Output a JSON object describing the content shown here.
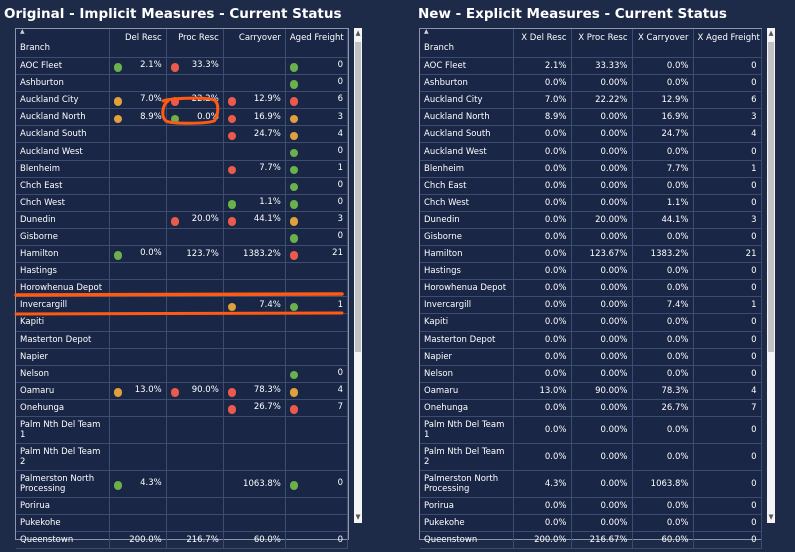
{
  "left": {
    "title": "Original - Implicit Measures - Current Status",
    "columns": [
      "Branch",
      "Del Resc",
      "Proc Resc",
      "Carryover",
      "Aged Freight"
    ],
    "rows": [
      {
        "branch": "AOC Fleet",
        "del": "2.1%",
        "del_ind": "green",
        "proc": "33.3%",
        "proc_ind": "red",
        "carry": "",
        "carry_ind": "",
        "aged": "0",
        "aged_ind": "green"
      },
      {
        "branch": "Ashburton",
        "del": "",
        "del_ind": "",
        "proc": "",
        "proc_ind": "",
        "carry": "",
        "carry_ind": "",
        "aged": "0",
        "aged_ind": "green"
      },
      {
        "branch": "Auckland City",
        "del": "7.0%",
        "del_ind": "orange",
        "proc": "22.2%",
        "proc_ind": "red",
        "carry": "12.9%",
        "carry_ind": "red",
        "aged": "6",
        "aged_ind": "red"
      },
      {
        "branch": "Auckland North",
        "del": "8.9%",
        "del_ind": "orange",
        "proc": "0.0%",
        "proc_ind": "green",
        "carry": "16.9%",
        "carry_ind": "red",
        "aged": "3",
        "aged_ind": "orange"
      },
      {
        "branch": "Auckland South",
        "del": "",
        "del_ind": "",
        "proc": "",
        "proc_ind": "",
        "carry": "24.7%",
        "carry_ind": "red",
        "aged": "4",
        "aged_ind": "orange"
      },
      {
        "branch": "Auckland West",
        "del": "",
        "del_ind": "",
        "proc": "",
        "proc_ind": "",
        "carry": "",
        "carry_ind": "",
        "aged": "0",
        "aged_ind": "green"
      },
      {
        "branch": "Blenheim",
        "del": "",
        "del_ind": "",
        "proc": "",
        "proc_ind": "",
        "carry": "7.7%",
        "carry_ind": "red",
        "aged": "1",
        "aged_ind": "green"
      },
      {
        "branch": "Chch East",
        "del": "",
        "del_ind": "",
        "proc": "",
        "proc_ind": "",
        "carry": "",
        "carry_ind": "",
        "aged": "0",
        "aged_ind": "green"
      },
      {
        "branch": "Chch West",
        "del": "",
        "del_ind": "",
        "proc": "",
        "proc_ind": "",
        "carry": "1.1%",
        "carry_ind": "green",
        "aged": "0",
        "aged_ind": "green"
      },
      {
        "branch": "Dunedin",
        "del": "",
        "del_ind": "",
        "proc": "20.0%",
        "proc_ind": "red",
        "carry": "44.1%",
        "carry_ind": "red",
        "aged": "3",
        "aged_ind": "orange"
      },
      {
        "branch": "Gisborne",
        "del": "",
        "del_ind": "",
        "proc": "",
        "proc_ind": "",
        "carry": "",
        "carry_ind": "",
        "aged": "0",
        "aged_ind": "green"
      },
      {
        "branch": "Hamilton",
        "del": "0.0%",
        "del_ind": "green",
        "proc": "123.7%",
        "proc_ind": "",
        "carry": "1383.2%",
        "carry_ind": "",
        "aged": "21",
        "aged_ind": "red"
      },
      {
        "branch": "Hastings",
        "del": "",
        "del_ind": "",
        "proc": "",
        "proc_ind": "",
        "carry": "",
        "carry_ind": "",
        "aged": "",
        "aged_ind": ""
      },
      {
        "branch": "Horowhenua Depot",
        "del": "",
        "del_ind": "",
        "proc": "",
        "proc_ind": "",
        "carry": "",
        "carry_ind": "",
        "aged": "",
        "aged_ind": ""
      },
      {
        "branch": "Invercargill",
        "del": "",
        "del_ind": "",
        "proc": "",
        "proc_ind": "",
        "carry": "7.4%",
        "carry_ind": "orange",
        "aged": "1",
        "aged_ind": "green"
      },
      {
        "branch": "Kapiti",
        "del": "",
        "del_ind": "",
        "proc": "",
        "proc_ind": "",
        "carry": "",
        "carry_ind": "",
        "aged": "",
        "aged_ind": ""
      },
      {
        "branch": "Masterton Depot",
        "del": "",
        "del_ind": "",
        "proc": "",
        "proc_ind": "",
        "carry": "",
        "carry_ind": "",
        "aged": "",
        "aged_ind": ""
      },
      {
        "branch": "Napier",
        "del": "",
        "del_ind": "",
        "proc": "",
        "proc_ind": "",
        "carry": "",
        "carry_ind": "",
        "aged": "",
        "aged_ind": ""
      },
      {
        "branch": "Nelson",
        "del": "",
        "del_ind": "",
        "proc": "",
        "proc_ind": "",
        "carry": "",
        "carry_ind": "",
        "aged": "0",
        "aged_ind": "green"
      },
      {
        "branch": "Oamaru",
        "del": "13.0%",
        "del_ind": "orange",
        "proc": "90.0%",
        "proc_ind": "red",
        "carry": "78.3%",
        "carry_ind": "red",
        "aged": "4",
        "aged_ind": "orange"
      },
      {
        "branch": "Onehunga",
        "del": "",
        "del_ind": "",
        "proc": "",
        "proc_ind": "",
        "carry": "26.7%",
        "carry_ind": "red",
        "aged": "7",
        "aged_ind": "red"
      },
      {
        "branch": "Palm Nth Del Team 1",
        "del": "",
        "del_ind": "",
        "proc": "",
        "proc_ind": "",
        "carry": "",
        "carry_ind": "",
        "aged": "",
        "aged_ind": "",
        "tall": true
      },
      {
        "branch": "Palm Nth Del Team 2",
        "del": "",
        "del_ind": "",
        "proc": "",
        "proc_ind": "",
        "carry": "",
        "carry_ind": "",
        "aged": "",
        "aged_ind": "",
        "tall": true
      },
      {
        "branch": "Palmerston North Processing",
        "del": "4.3%",
        "del_ind": "green",
        "proc": "",
        "proc_ind": "",
        "carry": "1063.8%",
        "carry_ind": "",
        "aged": "0",
        "aged_ind": "green",
        "tall": true
      },
      {
        "branch": "Porirua",
        "del": "",
        "del_ind": "",
        "proc": "",
        "proc_ind": "",
        "carry": "",
        "carry_ind": "",
        "aged": "",
        "aged_ind": ""
      },
      {
        "branch": "Pukekohe",
        "del": "",
        "del_ind": "",
        "proc": "",
        "proc_ind": "",
        "carry": "",
        "carry_ind": "",
        "aged": "",
        "aged_ind": ""
      },
      {
        "branch": "Queenstown",
        "del": "200.0%",
        "del_ind": "",
        "proc": "216.7%",
        "proc_ind": "",
        "carry": "60.0%",
        "carry_ind": "",
        "aged": "0",
        "aged_ind": ""
      }
    ]
  },
  "right": {
    "title": "New - Explicit Measures - Current Status",
    "columns": [
      "Branch",
      "X Del Resc",
      "X Proc Resc",
      "X Carryover",
      "X Aged Freight"
    ],
    "rows": [
      {
        "branch": "AOC Fleet",
        "del": "2.1%",
        "proc": "33.33%",
        "carry": "0.0%",
        "aged": "0"
      },
      {
        "branch": "Ashburton",
        "del": "0.0%",
        "proc": "0.00%",
        "carry": "0.0%",
        "aged": "0"
      },
      {
        "branch": "Auckland City",
        "del": "7.0%",
        "proc": "22.22%",
        "carry": "12.9%",
        "aged": "6"
      },
      {
        "branch": "Auckland North",
        "del": "8.9%",
        "proc": "0.00%",
        "carry": "16.9%",
        "aged": "3"
      },
      {
        "branch": "Auckland South",
        "del": "0.0%",
        "proc": "0.00%",
        "carry": "24.7%",
        "aged": "4"
      },
      {
        "branch": "Auckland West",
        "del": "0.0%",
        "proc": "0.00%",
        "carry": "0.0%",
        "aged": "0"
      },
      {
        "branch": "Blenheim",
        "del": "0.0%",
        "proc": "0.00%",
        "carry": "7.7%",
        "aged": "1"
      },
      {
        "branch": "Chch East",
        "del": "0.0%",
        "proc": "0.00%",
        "carry": "0.0%",
        "aged": "0"
      },
      {
        "branch": "Chch West",
        "del": "0.0%",
        "proc": "0.00%",
        "carry": "1.1%",
        "aged": "0"
      },
      {
        "branch": "Dunedin",
        "del": "0.0%",
        "proc": "20.00%",
        "carry": "44.1%",
        "aged": "3"
      },
      {
        "branch": "Gisborne",
        "del": "0.0%",
        "proc": "0.00%",
        "carry": "0.0%",
        "aged": "0"
      },
      {
        "branch": "Hamilton",
        "del": "0.0%",
        "proc": "123.67%",
        "carry": "1383.2%",
        "aged": "21"
      },
      {
        "branch": "Hastings",
        "del": "0.0%",
        "proc": "0.00%",
        "carry": "0.0%",
        "aged": "0"
      },
      {
        "branch": "Horowhenua Depot",
        "del": "0.0%",
        "proc": "0.00%",
        "carry": "0.0%",
        "aged": "0"
      },
      {
        "branch": "Invercargill",
        "del": "0.0%",
        "proc": "0.00%",
        "carry": "7.4%",
        "aged": "1"
      },
      {
        "branch": "Kapiti",
        "del": "0.0%",
        "proc": "0.00%",
        "carry": "0.0%",
        "aged": "0"
      },
      {
        "branch": "Masterton Depot",
        "del": "0.0%",
        "proc": "0.00%",
        "carry": "0.0%",
        "aged": "0"
      },
      {
        "branch": "Napier",
        "del": "0.0%",
        "proc": "0.00%",
        "carry": "0.0%",
        "aged": "0"
      },
      {
        "branch": "Nelson",
        "del": "0.0%",
        "proc": "0.00%",
        "carry": "0.0%",
        "aged": "0"
      },
      {
        "branch": "Oamaru",
        "del": "13.0%",
        "proc": "90.00%",
        "carry": "78.3%",
        "aged": "4"
      },
      {
        "branch": "Onehunga",
        "del": "0.0%",
        "proc": "0.00%",
        "carry": "26.7%",
        "aged": "7"
      },
      {
        "branch": "Palm Nth Del Team 1",
        "del": "0.0%",
        "proc": "0.00%",
        "carry": "0.0%",
        "aged": "0",
        "tall": true
      },
      {
        "branch": "Palm Nth Del Team 2",
        "del": "0.0%",
        "proc": "0.00%",
        "carry": "0.0%",
        "aged": "0",
        "tall": true
      },
      {
        "branch": "Palmerston North Processing",
        "del": "4.3%",
        "proc": "0.00%",
        "carry": "1063.8%",
        "aged": "0",
        "tall": true
      },
      {
        "branch": "Porirua",
        "del": "0.0%",
        "proc": "0.00%",
        "carry": "0.0%",
        "aged": "0"
      },
      {
        "branch": "Pukekohe",
        "del": "0.0%",
        "proc": "0.00%",
        "carry": "0.0%",
        "aged": "0"
      },
      {
        "branch": "Queenstown",
        "del": "200.0%",
        "proc": "216.67%",
        "carry": "60.0%",
        "aged": "0"
      }
    ]
  },
  "scroll": {
    "up_glyph": "▲",
    "down_glyph": "▼"
  },
  "sort_glyph": "▲",
  "colors": {
    "green": "#6ab04c",
    "red": "#ec5a4b",
    "orange": "#e0a03c",
    "annotation": "#ff5a14",
    "background": "#1d2a48"
  }
}
